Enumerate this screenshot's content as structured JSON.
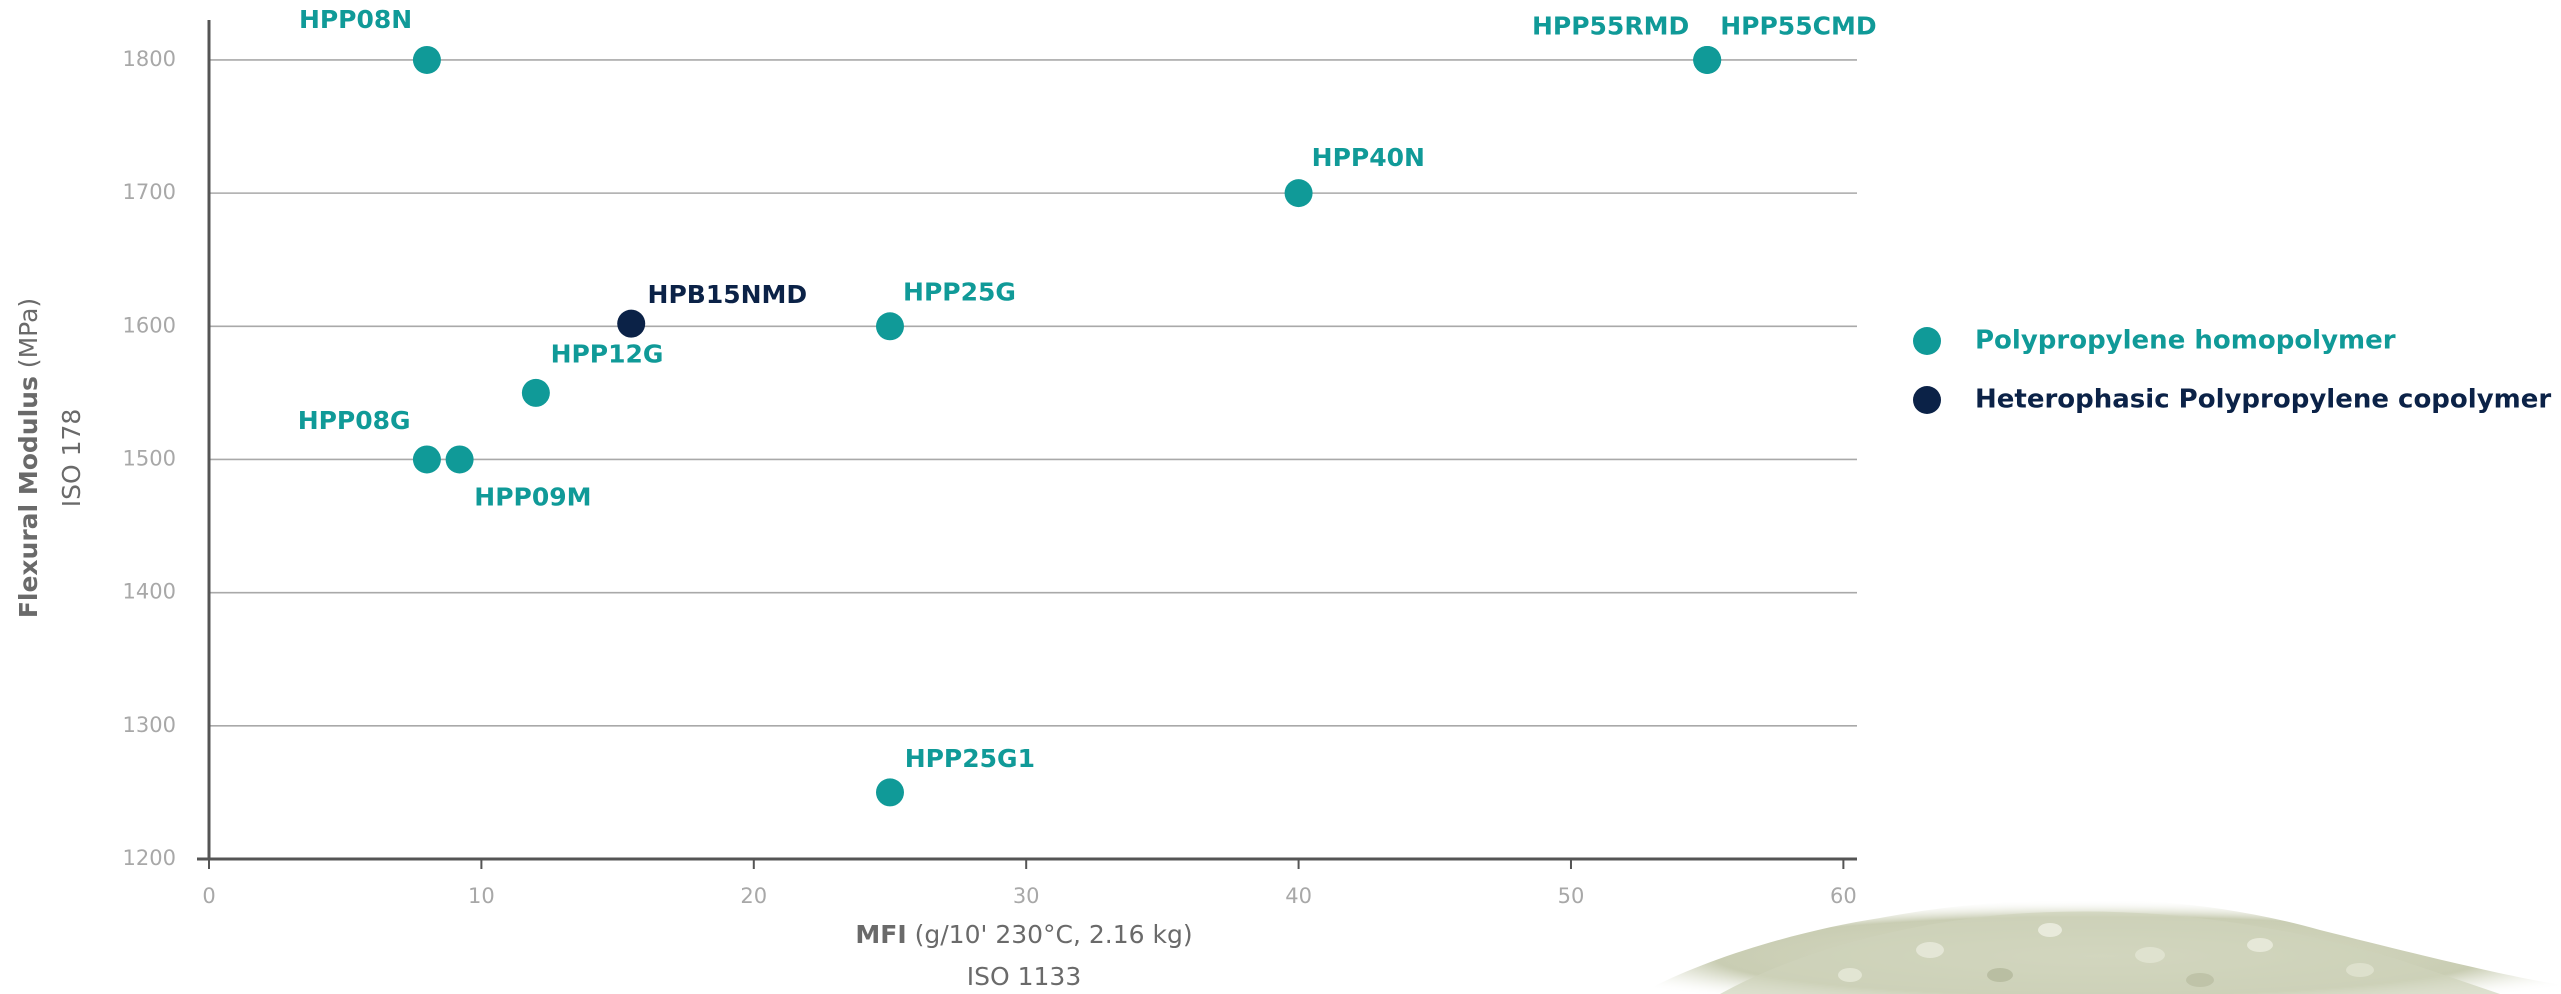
{
  "chart_data": {
    "type": "scatter",
    "x_label": {
      "name": "MFI",
      "unit": "(g/10' 230°C, 2.16 kg)",
      "standard": "ISO 1133"
    },
    "y_label": {
      "name": "Flexural Modulus",
      "unit": "(MPa)",
      "standard": "ISO 178"
    },
    "xlim": [
      0,
      60.5
    ],
    "ylim": [
      1200,
      1830
    ],
    "xticks": [
      0,
      10,
      20,
      30,
      40,
      50,
      60
    ],
    "yticks": [
      1200,
      1300,
      1400,
      1500,
      1600,
      1700,
      1800
    ],
    "grid": true,
    "legend": "right",
    "series": [
      {
        "name": "Polypropylene homopolymer",
        "color": "#109a98",
        "x": [
          8,
          55,
          55,
          40,
          25,
          12,
          8,
          9.2,
          25
        ],
        "values": [
          1800,
          1800,
          1800,
          1700,
          1600,
          1550,
          1500,
          1500,
          1250
        ],
        "labels": [
          "HPP08N",
          "HPP55RMD",
          "HPP55CMD",
          "HPP40N",
          "HPP25G",
          "HPP12G",
          "HPP08G",
          "HPP09M",
          "HPP25G1"
        ]
      },
      {
        "name": "Heterophasic Polypropylene copolymer",
        "color": "#0b2247",
        "x": [
          15.5
        ],
        "values": [
          1602
        ],
        "labels": [
          "HPB15NMD"
        ]
      }
    ]
  }
}
